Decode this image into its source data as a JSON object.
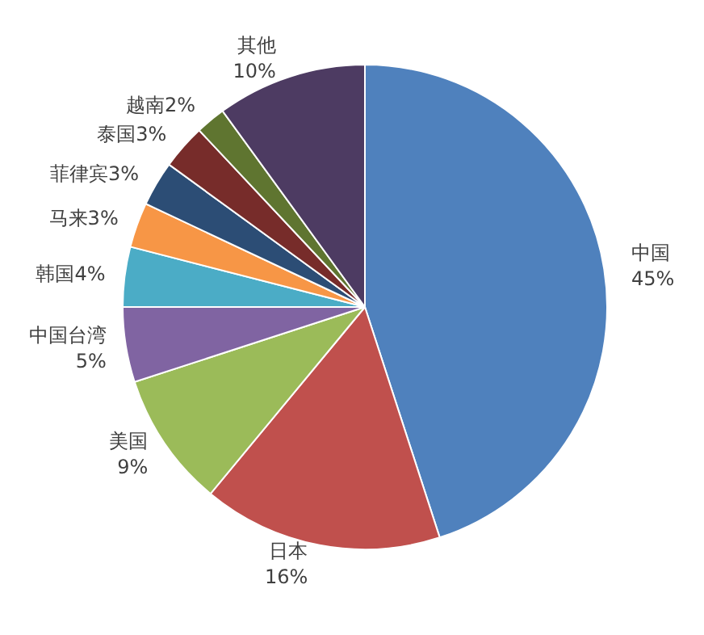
{
  "chart_data": {
    "type": "pie",
    "categories": [
      "中国",
      "日本",
      "美国",
      "中国台湾",
      "韩国",
      "马来",
      "菲律宾",
      "泰国",
      "越南",
      "其他"
    ],
    "values": [
      45,
      16,
      9,
      5,
      4,
      3,
      3,
      3,
      2,
      10
    ],
    "value_labels": [
      "45%",
      "16%",
      "9%",
      "5%",
      "4%",
      "3%",
      "3%",
      "3%",
      "2%",
      "10%"
    ],
    "colors": [
      "#4f81bd",
      "#c0504d",
      "#9bbb59",
      "#8064a2",
      "#4bacc6",
      "#f79646",
      "#2c4d75",
      "#772c2a",
      "#5f7530",
      "#4d3b62"
    ],
    "legend": false
  }
}
